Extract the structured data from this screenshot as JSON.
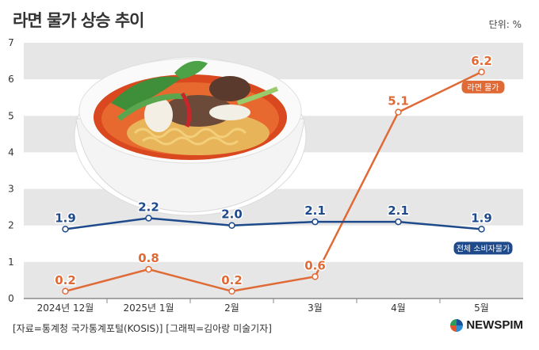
{
  "title": "라면 물가 상승 추이",
  "unit": "단위: %",
  "source": "[자료=통계청 국가통계포털(KOSIS)] [그래픽=김아랑 미술기자]",
  "brand": "NEWSPIM",
  "colors": {
    "ramen": "#e06a36",
    "cpi": "#1e4a8c",
    "band": "#e6e6e6"
  },
  "chart_data": {
    "type": "line",
    "categories": [
      "2024년 12월",
      "2025년 1월",
      "2월",
      "3월",
      "4월",
      "5월"
    ],
    "ylim": [
      0,
      7
    ],
    "yticks": [
      "0",
      "1",
      "2",
      "3",
      "4",
      "5",
      "6",
      "7"
    ],
    "series": [
      {
        "name": "라면 물가",
        "values": [
          0.2,
          0.8,
          0.2,
          0.6,
          5.1,
          6.2
        ],
        "labels": [
          "0.2",
          "0.8",
          "0.2",
          "0.6",
          "5.1",
          "6.2"
        ]
      },
      {
        "name": "전체 소비자물가",
        "values": [
          1.9,
          2.2,
          2.0,
          2.1,
          2.1,
          1.9
        ],
        "labels": [
          "1.9",
          "2.2",
          "2.0",
          "2.1",
          "2.1",
          "1.9"
        ]
      }
    ]
  }
}
